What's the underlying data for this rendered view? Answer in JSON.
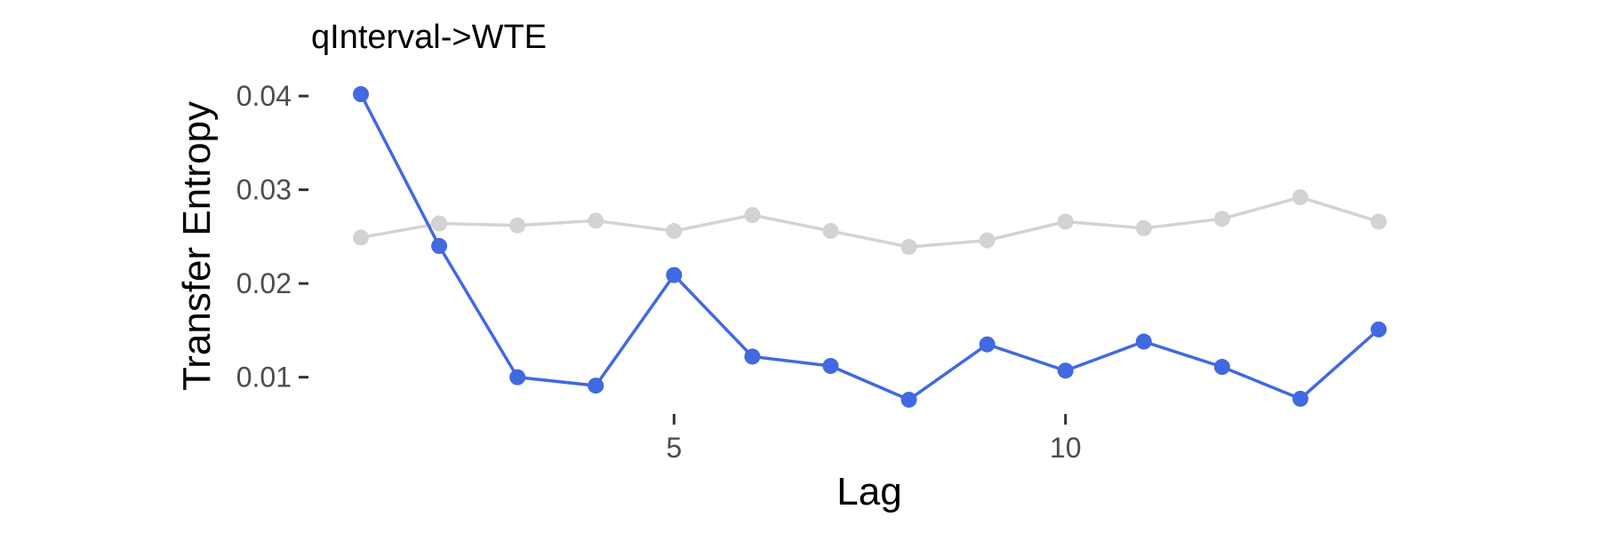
{
  "chart_data": {
    "type": "line",
    "title": "qInterval->WTE",
    "xlabel": "Lag",
    "ylabel": "Transfer Entropy",
    "x": [
      1,
      2,
      3,
      4,
      5,
      6,
      7,
      8,
      9,
      10,
      11,
      12,
      13,
      14
    ],
    "xlim": [
      1,
      14
    ],
    "ylim": [
      0.0075,
      0.0402
    ],
    "x_ticks": [
      5,
      10
    ],
    "y_ticks": [
      0.01,
      0.02,
      0.03,
      0.04
    ],
    "x_tick_labels": [
      "5",
      "10"
    ],
    "y_tick_labels": [
      "0.01",
      "0.02",
      "0.03",
      "0.04"
    ],
    "grid": false,
    "legend": "none",
    "series": [
      {
        "color": "#d3d3d3",
        "values": [
          0.0249,
          0.0264,
          0.0262,
          0.0267,
          0.0256,
          0.0273,
          0.0256,
          0.0239,
          0.0246,
          0.0266,
          0.0259,
          0.0269,
          0.0292,
          0.0266
        ]
      },
      {
        "color": "#4169e1",
        "values": [
          0.0402,
          0.024,
          0.01,
          0.0091,
          0.0209,
          0.0122,
          0.0112,
          0.0076,
          0.0135,
          0.0107,
          0.0138,
          0.0111,
          0.0077,
          0.0151
        ]
      }
    ]
  }
}
